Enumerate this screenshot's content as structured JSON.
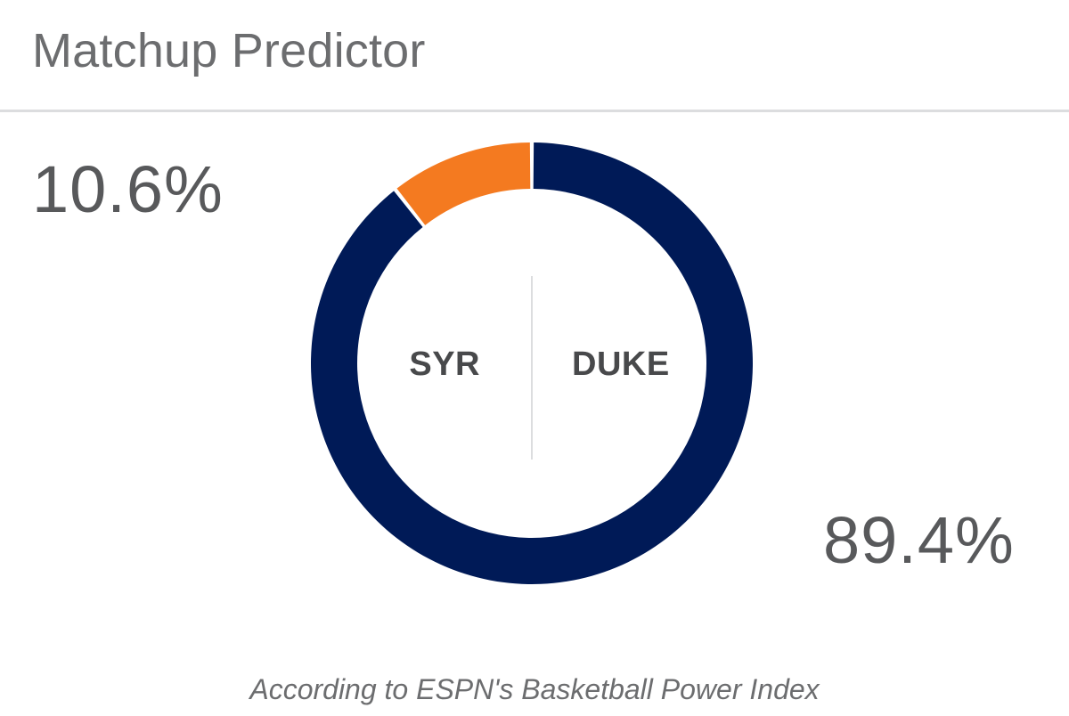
{
  "title": "Matchup Predictor",
  "footnote": "According to ESPN's Basketball Power Index",
  "colors": {
    "away": "#f47a20",
    "home": "#001a57",
    "text": "#58595b",
    "divider": "#dcdddf"
  },
  "chart_data": {
    "type": "pie",
    "style": "donut",
    "categories": [
      "SYR",
      "DUKE"
    ],
    "values": [
      10.6,
      89.4
    ],
    "value_labels": [
      "10.6%",
      "89.4%"
    ],
    "series": [
      {
        "name": "SYR",
        "value": 10.6,
        "color": "#f47a20"
      },
      {
        "name": "DUKE",
        "value": 89.4,
        "color": "#001a57"
      }
    ]
  },
  "teams": {
    "away": {
      "abbr": "SYR",
      "win_pct": "10.6%"
    },
    "home": {
      "abbr": "DUKE",
      "win_pct": "89.4%"
    }
  }
}
